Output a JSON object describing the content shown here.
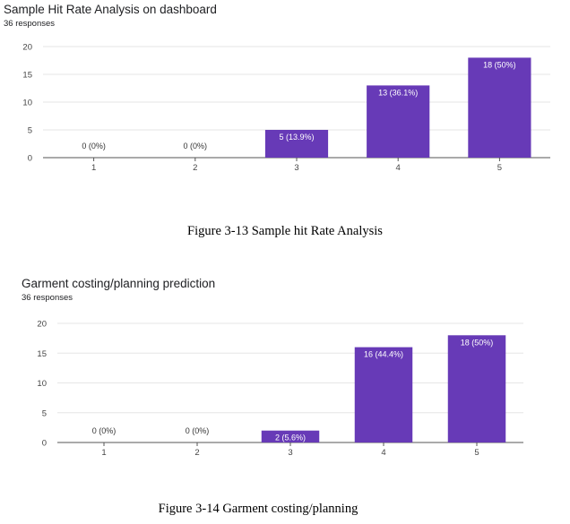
{
  "chart_data": [
    {
      "type": "bar",
      "title": "Sample Hit Rate Analysis on dashboard",
      "subtitle": "36 responses",
      "categories": [
        "1",
        "2",
        "3",
        "4",
        "5"
      ],
      "values": [
        0,
        0,
        5,
        13,
        18
      ],
      "data_labels": [
        "0 (0%)",
        "0 (0%)",
        "5 (13.9%)",
        "13 (36.1%)",
        "18 (50%)"
      ],
      "yticks": [
        0,
        5,
        10,
        15,
        20
      ],
      "ylim": [
        0,
        20
      ],
      "grid": true,
      "bar_color": "#673ab7",
      "caption": "Figure 3-13 Sample hit Rate Analysis"
    },
    {
      "type": "bar",
      "title": "Garment costing/planning prediction",
      "subtitle": "36 responses",
      "categories": [
        "1",
        "2",
        "3",
        "4",
        "5"
      ],
      "values": [
        0,
        0,
        2,
        16,
        18
      ],
      "data_labels": [
        "0 (0%)",
        "0 (0%)",
        "2 (5.6%)",
        "16 (44.4%)",
        "18 (50%)"
      ],
      "yticks": [
        0,
        5,
        10,
        15,
        20
      ],
      "ylim": [
        0,
        20
      ],
      "grid": true,
      "bar_color": "#673ab7",
      "caption": "Figure 3-14 Garment costing/planning"
    }
  ]
}
